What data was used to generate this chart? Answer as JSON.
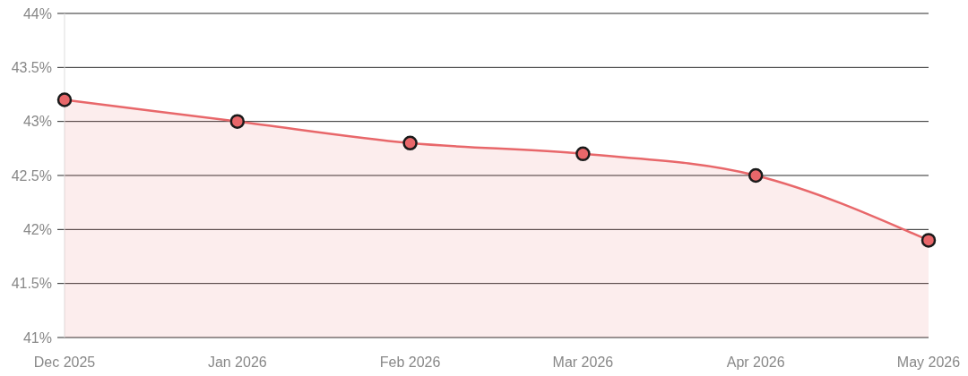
{
  "chart_data": {
    "type": "area",
    "categories": [
      "Dec 2025",
      "Jan 2026",
      "Feb 2026",
      "Mar 2026",
      "Apr 2026",
      "May 2026"
    ],
    "series": [
      {
        "color": "#e8676a",
        "values": [
          43.2,
          43.0,
          42.8,
          42.7,
          42.5,
          41.9
        ]
      }
    ],
    "ylim": [
      41,
      44
    ],
    "yticks": [
      {
        "value": 41,
        "label": "41%"
      },
      {
        "value": 41.5,
        "label": "41.5%"
      },
      {
        "value": 42,
        "label": "42%"
      },
      {
        "value": 42.5,
        "label": "42.5%"
      },
      {
        "value": 43,
        "label": "43%"
      },
      {
        "value": 43.5,
        "label": "43.5%"
      },
      {
        "value": 44,
        "label": "44%"
      }
    ],
    "grid": "y",
    "marker": "circle"
  }
}
